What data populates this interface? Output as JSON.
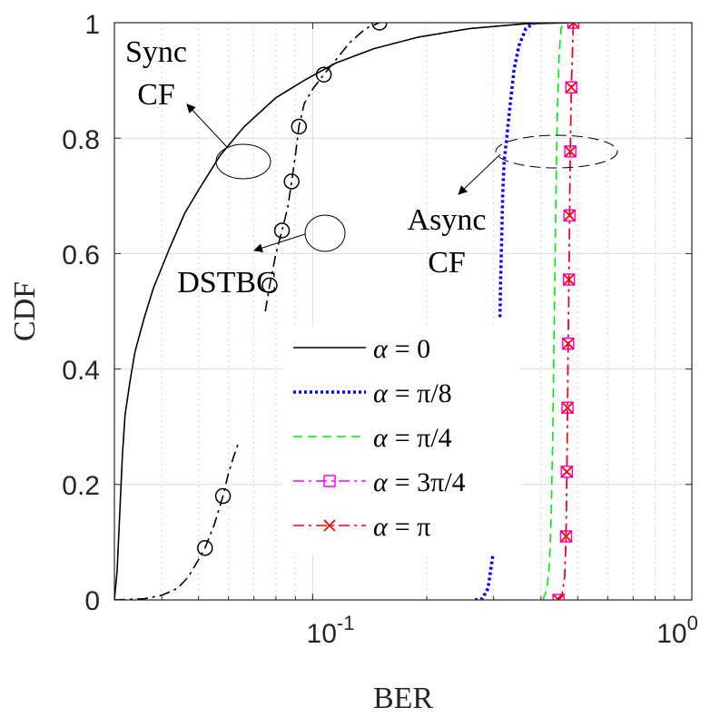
{
  "chart_data": {
    "type": "line",
    "xlabel": "BER",
    "ylabel": "CDF",
    "xscale": "log",
    "xlim": [
      0.03,
      1.0
    ],
    "ylim": [
      0,
      1
    ],
    "grid": true,
    "minor_grid_x": true,
    "legend_position": "center",
    "x_tick_labels": [
      {
        "value": 0.1,
        "base": "10",
        "exp": "-1"
      },
      {
        "value": 1.0,
        "base": "10",
        "exp": "0"
      }
    ],
    "y_ticks": [
      0,
      0.2,
      0.4,
      0.6,
      0.8,
      1
    ],
    "y_tick_labels": [
      "0",
      "0.2",
      "0.4",
      "0.6",
      "0.8",
      "1"
    ],
    "annotations": {
      "sync_cf": [
        "Sync",
        "CF"
      ],
      "dstbc": "DSTBC",
      "async_cf": [
        "Async",
        "CF"
      ]
    },
    "series": [
      {
        "name": "α = 0",
        "legend_prefix": "α",
        "legend_value": "= 0",
        "color": "#000000",
        "style": "solid",
        "marker": "none",
        "points": [
          [
            0.03,
            0.0
          ],
          [
            0.0305,
            0.05
          ],
          [
            0.031,
            0.15
          ],
          [
            0.0315,
            0.25
          ],
          [
            0.032,
            0.32
          ],
          [
            0.033,
            0.38
          ],
          [
            0.034,
            0.43
          ],
          [
            0.036,
            0.49
          ],
          [
            0.038,
            0.54
          ],
          [
            0.042,
            0.61
          ],
          [
            0.046,
            0.67
          ],
          [
            0.05,
            0.71
          ],
          [
            0.057,
            0.77
          ],
          [
            0.066,
            0.82
          ],
          [
            0.08,
            0.87
          ],
          [
            0.095,
            0.9
          ],
          [
            0.115,
            0.93
          ],
          [
            0.145,
            0.955
          ],
          [
            0.19,
            0.975
          ],
          [
            0.26,
            0.99
          ],
          [
            0.36,
            0.998
          ],
          [
            0.48,
            1.0
          ]
        ]
      },
      {
        "name": "DSTBC",
        "color": "#000000",
        "style": "dashdot",
        "marker": "circle",
        "in_legend": false,
        "segments": [
          [
            [
              0.03,
              0.0
            ],
            [
              0.036,
              0.002
            ],
            [
              0.04,
              0.008
            ],
            [
              0.044,
              0.02
            ],
            [
              0.047,
              0.04
            ],
            [
              0.05,
              0.07
            ],
            [
              0.052,
              0.09
            ],
            [
              0.055,
              0.13
            ],
            [
              0.058,
              0.18
            ],
            [
              0.06,
              0.22
            ],
            [
              0.062,
              0.25
            ],
            [
              0.064,
              0.275
            ]
          ],
          [
            [
              0.075,
              0.5
            ],
            [
              0.077,
              0.545
            ],
            [
              0.08,
              0.6
            ],
            [
              0.083,
              0.64
            ],
            [
              0.086,
              0.68
            ],
            [
              0.088,
              0.725
            ],
            [
              0.09,
              0.77
            ],
            [
              0.092,
              0.82
            ],
            [
              0.095,
              0.86
            ],
            [
              0.1,
              0.885
            ],
            [
              0.107,
              0.91
            ],
            [
              0.115,
              0.935
            ],
            [
              0.125,
              0.965
            ],
            [
              0.138,
              0.99
            ],
            [
              0.15,
              1.0
            ]
          ]
        ],
        "markers": [
          [
            0.052,
            0.09
          ],
          [
            0.058,
            0.18
          ],
          [
            0.077,
            0.545
          ],
          [
            0.083,
            0.64
          ],
          [
            0.088,
            0.725
          ],
          [
            0.092,
            0.82
          ],
          [
            0.107,
            0.91
          ],
          [
            0.15,
            1.0
          ]
        ]
      },
      {
        "name": "α = π/8",
        "legend_prefix": "α",
        "legend_value": "= π/8",
        "color": "#0000ff",
        "style": "dotted",
        "marker": "none",
        "segments": [
          [
            [
              0.268,
              0.0
            ],
            [
              0.28,
              0.002
            ],
            [
              0.29,
              0.02
            ],
            [
              0.296,
              0.06
            ],
            [
              0.299,
              0.08
            ]
          ],
          [
            [
              0.312,
              0.49
            ],
            [
              0.313,
              0.55
            ],
            [
              0.315,
              0.62
            ],
            [
              0.317,
              0.7
            ],
            [
              0.32,
              0.76
            ],
            [
              0.325,
              0.8
            ],
            [
              0.332,
              0.86
            ],
            [
              0.34,
              0.92
            ],
            [
              0.35,
              0.96
            ],
            [
              0.365,
              0.99
            ],
            [
              0.385,
              1.0
            ]
          ]
        ]
      },
      {
        "name": "α = π/4",
        "legend_prefix": "α",
        "legend_value": "= π/4",
        "color": "#00ee00",
        "style": "dashed",
        "marker": "none",
        "points": [
          [
            0.405,
            0.0
          ],
          [
            0.415,
            0.02
          ],
          [
            0.421,
            0.06
          ],
          [
            0.426,
            0.15
          ],
          [
            0.43,
            0.3
          ],
          [
            0.434,
            0.5
          ],
          [
            0.438,
            0.7
          ],
          [
            0.442,
            0.85
          ],
          [
            0.447,
            0.95
          ],
          [
            0.452,
            0.99
          ],
          [
            0.46,
            1.0
          ]
        ]
      },
      {
        "name": "α = 3π/4",
        "legend_prefix": "α",
        "legend_value": "= 3π/4",
        "color": "#ff00ff",
        "style": "dashdot",
        "marker": "square",
        "points": [
          [
            0.44,
            0.0
          ],
          [
            0.455,
            0.01
          ],
          [
            0.462,
            0.04
          ],
          [
            0.466,
            0.11
          ],
          [
            0.468,
            0.22
          ],
          [
            0.47,
            0.333
          ],
          [
            0.472,
            0.444
          ],
          [
            0.474,
            0.555
          ],
          [
            0.476,
            0.666
          ],
          [
            0.478,
            0.777
          ],
          [
            0.481,
            0.888
          ],
          [
            0.487,
            1.0
          ]
        ],
        "markers": [
          [
            0.445,
            0.0
          ],
          [
            0.466,
            0.11
          ],
          [
            0.468,
            0.222
          ],
          [
            0.47,
            0.333
          ],
          [
            0.472,
            0.444
          ],
          [
            0.474,
            0.555
          ],
          [
            0.476,
            0.666
          ],
          [
            0.478,
            0.777
          ],
          [
            0.481,
            0.888
          ],
          [
            0.487,
            1.0
          ]
        ]
      },
      {
        "name": "α = π",
        "legend_prefix": "α",
        "legend_value": "= π",
        "color": "#ff0000",
        "style": "dashdot",
        "marker": "x",
        "points": [
          [
            0.44,
            0.0
          ],
          [
            0.455,
            0.01
          ],
          [
            0.462,
            0.04
          ],
          [
            0.466,
            0.11
          ],
          [
            0.468,
            0.22
          ],
          [
            0.47,
            0.333
          ],
          [
            0.472,
            0.444
          ],
          [
            0.474,
            0.555
          ],
          [
            0.476,
            0.666
          ],
          [
            0.478,
            0.777
          ],
          [
            0.481,
            0.888
          ],
          [
            0.487,
            1.0
          ]
        ],
        "markers": [
          [
            0.445,
            0.0
          ],
          [
            0.466,
            0.11
          ],
          [
            0.468,
            0.222
          ],
          [
            0.47,
            0.333
          ],
          [
            0.472,
            0.444
          ],
          [
            0.474,
            0.555
          ],
          [
            0.476,
            0.666
          ],
          [
            0.478,
            0.777
          ],
          [
            0.481,
            0.888
          ],
          [
            0.487,
            1.0
          ]
        ]
      }
    ]
  }
}
